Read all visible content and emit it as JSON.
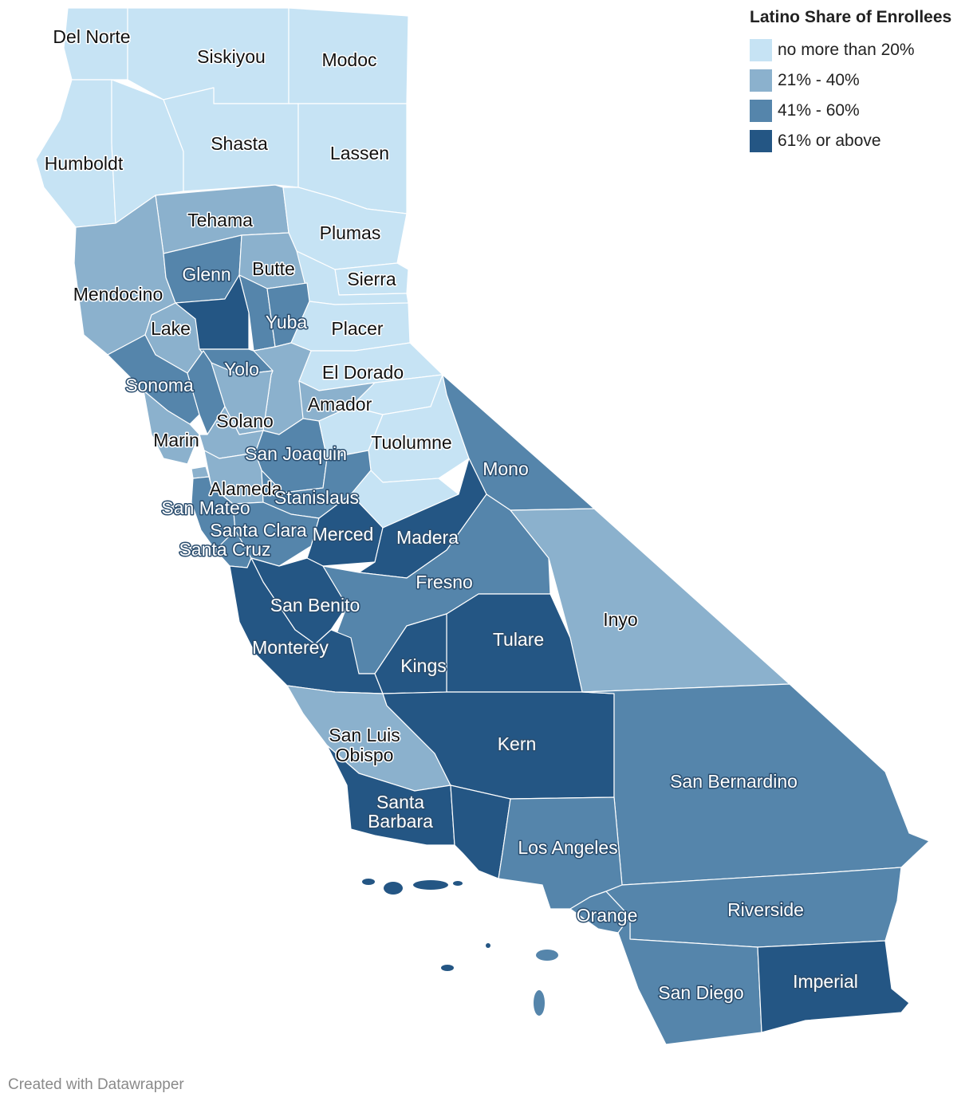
{
  "legend": {
    "title": "Latino Share of Enrollees",
    "bins": [
      {
        "label": "no more than 20%",
        "color": "#c6e3f4"
      },
      {
        "label": "21% - 40%",
        "color": "#8bb1cd"
      },
      {
        "label": "41% - 60%",
        "color": "#5585ab"
      },
      {
        "label": "61% or above",
        "color": "#245684"
      }
    ]
  },
  "credit": "Created with Datawrapper",
  "counties": {
    "Del Norte": 1,
    "Siskiyou": 1,
    "Modoc": 1,
    "Humboldt": 1,
    "Shasta": 1,
    "Lassen": 1,
    "Trinity": 1,
    "Tehama": 2,
    "Plumas": 1,
    "Mendocino": 2,
    "Glenn": 3,
    "Butte": 2,
    "Sierra": 1,
    "Nevada": 1,
    "Lake": 2,
    "Colusa": 4,
    "Yuba": 3,
    "Sutter": 3,
    "Placer": 1,
    "Yolo": 3,
    "Sonoma": 3,
    "El Dorado": 1,
    "Napa": 3,
    "Sacramento": 2,
    "Amador": 2,
    "Solano": 2,
    "Marin": 2,
    "Contra Costa": 2,
    "San Joaquin": 3,
    "Calaveras": 1,
    "Alpine": 1,
    "Tuolumne": 1,
    "Alameda": 2,
    "San Francisco": 2,
    "Mono": 3,
    "San Mateo": 3,
    "Stanislaus": 3,
    "Santa Clara": 3,
    "Mariposa": 1,
    "Merced": 4,
    "Madera": 4,
    "Santa Cruz": 3,
    "San Benito": 4,
    "Fresno": 3,
    "Inyo": 2,
    "Monterey": 4,
    "Tulare": 4,
    "Kings": 4,
    "San Luis Obispo": 2,
    "Kern": 4,
    "San Bernardino": 3,
    "Santa Barbara": 4,
    "Ventura": 4,
    "Los Angeles": 3,
    "Orange": 3,
    "Riverside": 3,
    "San Diego": 3,
    "Imperial": 4
  },
  "labels": [
    {
      "name": "Del Norte",
      "text": "Del Norte"
    },
    {
      "name": "Siskiyou",
      "text": "Siskiyou"
    },
    {
      "name": "Modoc",
      "text": "Modoc"
    },
    {
      "name": "Shasta",
      "text": "Shasta"
    },
    {
      "name": "Lassen",
      "text": "Lassen"
    },
    {
      "name": "Humboldt",
      "text": "Humboldt"
    },
    {
      "name": "Tehama",
      "text": "Tehama"
    },
    {
      "name": "Plumas",
      "text": "Plumas"
    },
    {
      "name": "Glenn",
      "text": "Glenn"
    },
    {
      "name": "Butte",
      "text": "Butte"
    },
    {
      "name": "Sierra",
      "text": "Sierra"
    },
    {
      "name": "Mendocino",
      "text": "Mendocino"
    },
    {
      "name": "Yuba",
      "text": "Yuba"
    },
    {
      "name": "Lake",
      "text": "Lake"
    },
    {
      "name": "Placer",
      "text": "Placer"
    },
    {
      "name": "Yolo",
      "text": "Yolo"
    },
    {
      "name": "El Dorado",
      "text": "El Dorado"
    },
    {
      "name": "Sonoma",
      "text": "Sonoma"
    },
    {
      "name": "Amador",
      "text": "Amador"
    },
    {
      "name": "Solano",
      "text": "Solano"
    },
    {
      "name": "Marin",
      "text": "Marin"
    },
    {
      "name": "Tuolumne",
      "text": "Tuolumne"
    },
    {
      "name": "San Joaquin",
      "text": "San Joaquin"
    },
    {
      "name": "Mono",
      "text": "Mono"
    },
    {
      "name": "Alameda",
      "text": "Alameda"
    },
    {
      "name": "Stanislaus",
      "text": "Stanislaus"
    },
    {
      "name": "San Mateo",
      "text": "San Mateo"
    },
    {
      "name": "Santa Clara",
      "text": "Santa Clara"
    },
    {
      "name": "Merced",
      "text": "Merced"
    },
    {
      "name": "Madera",
      "text": "Madera"
    },
    {
      "name": "Santa Cruz",
      "text": "Santa Cruz"
    },
    {
      "name": "Fresno",
      "text": "Fresno"
    },
    {
      "name": "San Benito",
      "text": "San Benito"
    },
    {
      "name": "Inyo",
      "text": "Inyo"
    },
    {
      "name": "Tulare",
      "text": "Tulare"
    },
    {
      "name": "Monterey",
      "text": "Monterey"
    },
    {
      "name": "Kings",
      "text": "Kings"
    },
    {
      "name": "San Luis Obispo",
      "text": "San Luis Obispo"
    },
    {
      "name": "Kern",
      "text": "Kern"
    },
    {
      "name": "San Bernardino",
      "text": "San Bernardino"
    },
    {
      "name": "Santa Barbara",
      "text": "Santa Barbara"
    },
    {
      "name": "Los Angeles",
      "text": "Los Angeles"
    },
    {
      "name": "Riverside",
      "text": "Riverside"
    },
    {
      "name": "Orange",
      "text": "Orange"
    },
    {
      "name": "San Diego",
      "text": "San Diego"
    },
    {
      "name": "Imperial",
      "text": "Imperial"
    }
  ]
}
